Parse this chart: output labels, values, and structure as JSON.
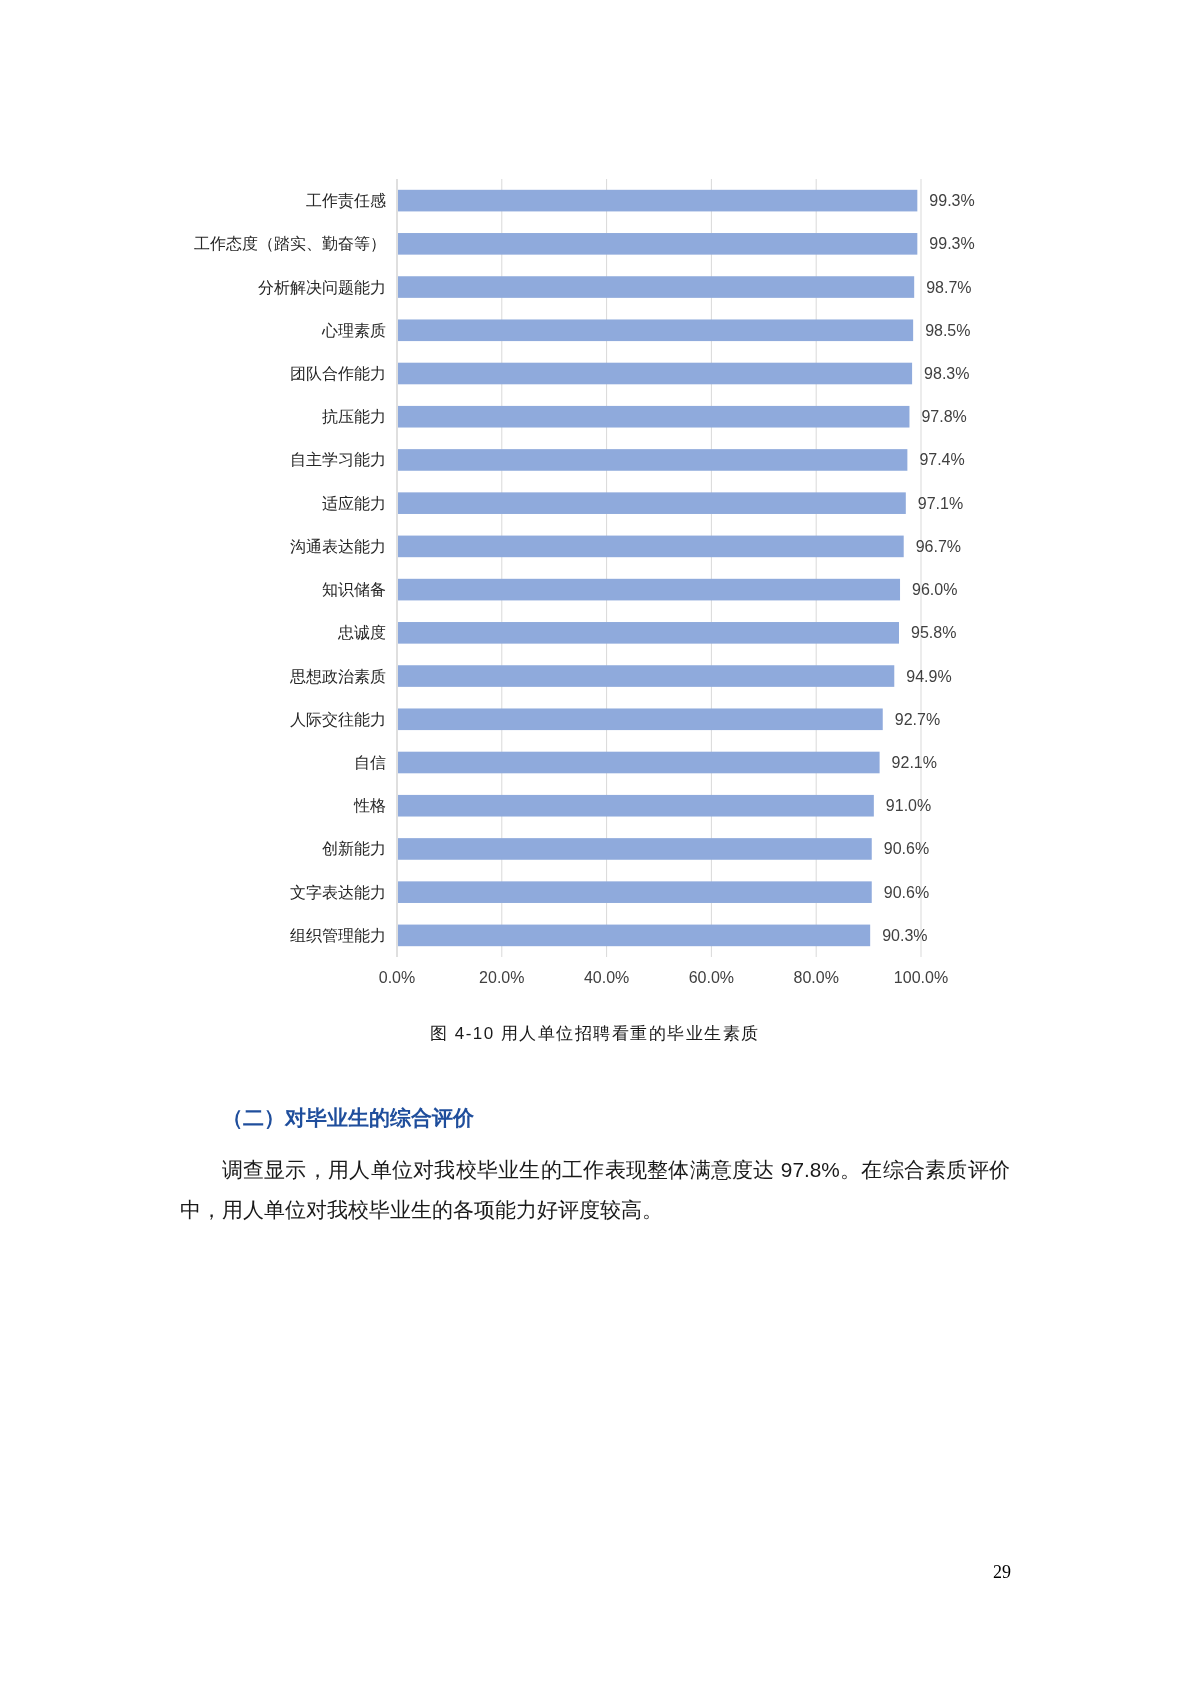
{
  "chart_data": {
    "type": "bar",
    "orientation": "horizontal",
    "title": "图 4-10 用人单位招聘看重的毕业生素质",
    "categories": [
      "工作责任感",
      "工作态度（踏实、勤奋等）",
      "分析解决问题能力",
      "心理素质",
      "团队合作能力",
      "抗压能力",
      "自主学习能力",
      "适应能力",
      "沟通表达能力",
      "知识储备",
      "忠诚度",
      "思想政治素质",
      "人际交往能力",
      "自信",
      "性格",
      "创新能力",
      "文字表达能力",
      "组织管理能力"
    ],
    "values": [
      99.3,
      99.3,
      98.7,
      98.5,
      98.3,
      97.8,
      97.4,
      97.1,
      96.7,
      96.0,
      95.8,
      94.9,
      92.7,
      92.1,
      91.0,
      90.6,
      90.6,
      90.3
    ],
    "value_labels": [
      "99.3%",
      "99.3%",
      "98.7%",
      "98.5%",
      "98.3%",
      "97.8%",
      "97.4%",
      "97.1%",
      "96.7%",
      "96.0%",
      "95.8%",
      "94.9%",
      "92.7%",
      "92.1%",
      "91.0%",
      "90.6%",
      "90.6%",
      "90.3%"
    ],
    "color": "#8faadc",
    "xlim": [
      0,
      100
    ],
    "xticks": [
      {
        "value": 0,
        "label": "0.0%"
      },
      {
        "value": 20,
        "label": "20.0%"
      },
      {
        "value": 40,
        "label": "40.0%"
      },
      {
        "value": 60,
        "label": "60.0%"
      },
      {
        "value": 80,
        "label": "80.0%"
      },
      {
        "value": 100,
        "label": "100.0%"
      }
    ],
    "grid": "x",
    "annotations": [
      "（二）对毕业生的综合评价",
      "调查显示，用人单位对我校毕业生的工作表现整体满意度达 97.8%。在综合素质评价中，用人单位对我校毕业生的各项能力好评度较高。",
      "29"
    ]
  }
}
